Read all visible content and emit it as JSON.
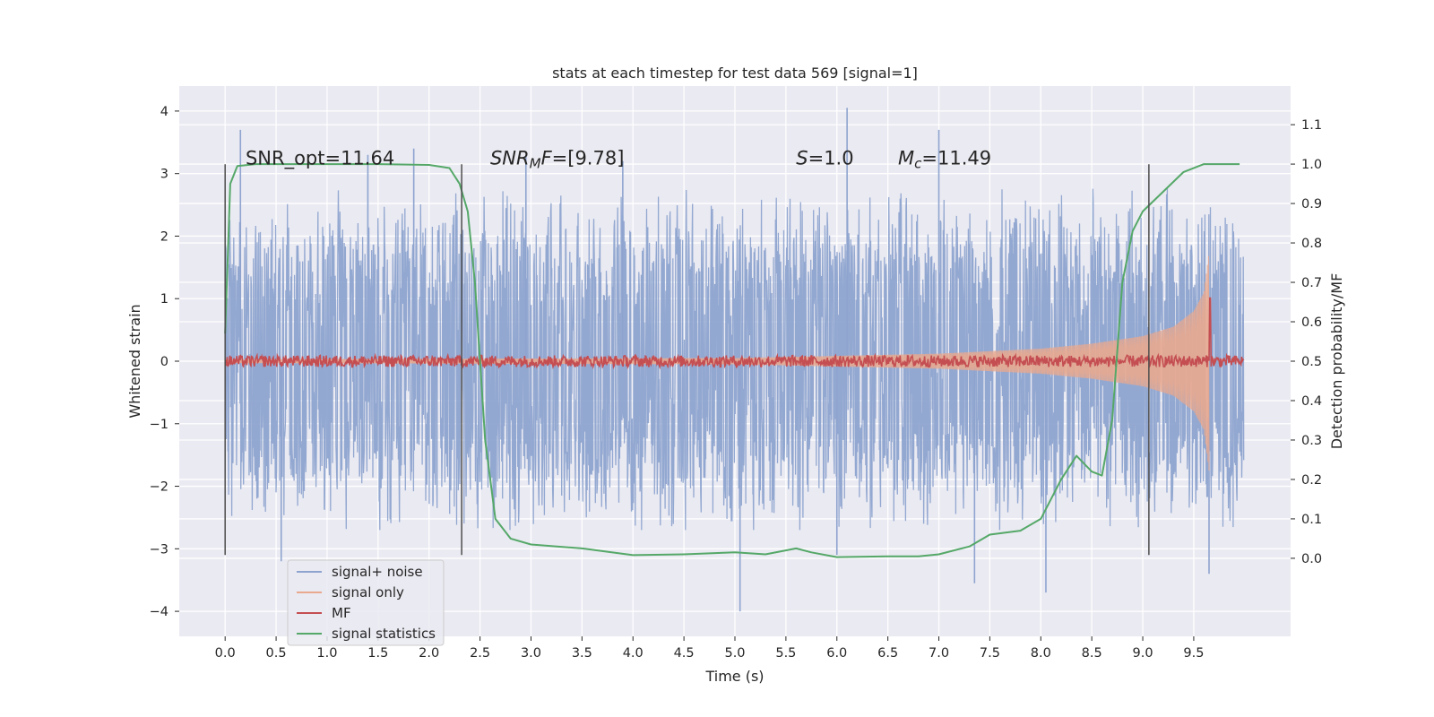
{
  "chart_data": {
    "type": "line",
    "title": "stats at each timestep for test data 569 [signal=1]",
    "xlabel": "Time (s)",
    "ylabel": "Whitened strain",
    "ylabel_right": "Detection probability/MF",
    "xlim": [
      -0.45,
      10.45
    ],
    "ylim": [
      -4.4,
      4.4
    ],
    "ylim_right": [
      -0.198,
      1.198
    ],
    "xticks": [
      0.0,
      0.5,
      1.0,
      1.5,
      2.0,
      2.5,
      3.0,
      3.5,
      4.0,
      4.5,
      5.0,
      5.5,
      6.0,
      6.5,
      7.0,
      7.5,
      8.0,
      8.5,
      9.0,
      9.5
    ],
    "xtick_labels": [
      "0.0",
      "0.5",
      "1.0",
      "1.5",
      "2.0",
      "2.5",
      "3.0",
      "3.5",
      "4.0",
      "4.5",
      "5.0",
      "5.5",
      "6.0",
      "6.5",
      "7.0",
      "7.5",
      "8.0",
      "8.5",
      "9.0",
      "9.5"
    ],
    "yticks": [
      4,
      3,
      2,
      1,
      0,
      -1,
      -2,
      -3,
      -4
    ],
    "ytick_labels": [
      "4",
      "3",
      "2",
      "1",
      "0",
      "−1",
      "−2",
      "−3",
      "−4"
    ],
    "yticks_right": [
      1.1,
      1.0,
      0.9,
      0.8,
      0.7,
      0.6,
      0.5,
      0.4,
      0.3,
      0.2,
      0.1,
      0.0
    ],
    "ytick_labels_right": [
      "1.1",
      "1.0",
      "0.9",
      "0.8",
      "0.7",
      "0.6",
      "0.5",
      "0.4",
      "0.3",
      "0.2",
      "0.1",
      "0.0"
    ],
    "grid": true,
    "legend_position": "lower-left",
    "annotations": [
      {
        "text": "SNR_opt=11.64",
        "x": 0.2,
        "y": 3.2
      },
      {
        "text": "SNR_MF=[9.78]",
        "x": 2.6,
        "y": 3.2
      },
      {
        "text": "S=1.0",
        "x": 5.6,
        "y": 3.2
      },
      {
        "text": "M_c=11.49",
        "x": 6.6,
        "y": 3.2
      }
    ],
    "vertical_lines": [
      {
        "x": 0.0,
        "ymin": -3.1,
        "ymax": 3.15
      },
      {
        "x": 2.32,
        "ymin": -3.1,
        "ymax": 3.15
      },
      {
        "x": 9.06,
        "ymin": -3.1,
        "ymax": 3.15
      }
    ],
    "series": [
      {
        "name": "signal+ noise",
        "color": "#8ea4cf",
        "axis": "left",
        "x_range": [
          0.0,
          9.99
        ],
        "envelope_upper": [
          [
            0.0,
            2.6
          ],
          [
            1.0,
            2.9
          ],
          [
            2.0,
            2.9
          ],
          [
            3.0,
            2.9
          ],
          [
            4.0,
            2.9
          ],
          [
            5.0,
            2.9
          ],
          [
            6.0,
            2.9
          ],
          [
            7.0,
            2.9
          ],
          [
            8.0,
            2.9
          ],
          [
            9.0,
            2.9
          ],
          [
            9.99,
            2.9
          ]
        ],
        "envelope_lower": [
          [
            0.0,
            -2.6
          ],
          [
            1.0,
            -2.7
          ],
          [
            2.0,
            -2.7
          ],
          [
            3.0,
            -2.7
          ],
          [
            4.0,
            -2.7
          ],
          [
            5.0,
            -2.7
          ],
          [
            6.0,
            -2.7
          ],
          [
            7.0,
            -2.7
          ],
          [
            8.0,
            -2.7
          ],
          [
            9.0,
            -2.7
          ],
          [
            9.99,
            -2.7
          ]
        ],
        "peaks": [
          [
            0.15,
            3.7
          ],
          [
            1.4,
            3.3
          ],
          [
            1.85,
            3.4
          ],
          [
            2.95,
            3.3
          ],
          [
            3.9,
            3.2
          ],
          [
            5.05,
            -4.0
          ],
          [
            6.1,
            4.05
          ],
          [
            6.0,
            -3.1
          ],
          [
            7.0,
            3.7
          ],
          [
            7.35,
            -3.55
          ],
          [
            8.05,
            -3.7
          ],
          [
            9.65,
            -3.4
          ],
          [
            0.55,
            -3.2
          ]
        ]
      },
      {
        "name": "signal only",
        "color": "#e8a98f",
        "axis": "left",
        "chirp_envelope": [
          [
            0.0,
            0.03
          ],
          [
            5.0,
            0.05
          ],
          [
            7.0,
            0.12
          ],
          [
            8.0,
            0.2
          ],
          [
            8.5,
            0.28
          ],
          [
            9.0,
            0.4
          ],
          [
            9.3,
            0.55
          ],
          [
            9.5,
            0.8
          ],
          [
            9.6,
            1.1
          ],
          [
            9.65,
            1.75
          ],
          [
            9.66,
            0.0
          ]
        ]
      },
      {
        "name": "MF",
        "color": "#c44e52",
        "axis": "right",
        "baseline": 0.5,
        "noise": 0.015,
        "spike": {
          "x": 9.66,
          "y": 0.66
        }
      },
      {
        "name": "signal statistics",
        "color": "#55a868",
        "axis": "right",
        "points": [
          [
            0.0,
            0.57
          ],
          [
            0.05,
            0.95
          ],
          [
            0.12,
            0.995
          ],
          [
            0.3,
            1.0
          ],
          [
            1.0,
            1.0
          ],
          [
            1.5,
            1.0
          ],
          [
            2.0,
            0.998
          ],
          [
            2.2,
            0.99
          ],
          [
            2.3,
            0.95
          ],
          [
            2.38,
            0.88
          ],
          [
            2.45,
            0.7
          ],
          [
            2.55,
            0.3
          ],
          [
            2.65,
            0.1
          ],
          [
            2.8,
            0.05
          ],
          [
            3.0,
            0.035
          ],
          [
            3.5,
            0.025
          ],
          [
            4.0,
            0.008
          ],
          [
            4.5,
            0.01
          ],
          [
            5.0,
            0.015
          ],
          [
            5.3,
            0.01
          ],
          [
            5.6,
            0.025
          ],
          [
            5.75,
            0.015
          ],
          [
            6.0,
            0.003
          ],
          [
            6.5,
            0.005
          ],
          [
            6.8,
            0.005
          ],
          [
            7.0,
            0.01
          ],
          [
            7.3,
            0.03
          ],
          [
            7.5,
            0.06
          ],
          [
            7.8,
            0.07
          ],
          [
            8.0,
            0.1
          ],
          [
            8.2,
            0.2
          ],
          [
            8.35,
            0.26
          ],
          [
            8.5,
            0.22
          ],
          [
            8.6,
            0.21
          ],
          [
            8.7,
            0.35
          ],
          [
            8.8,
            0.7
          ],
          [
            8.9,
            0.83
          ],
          [
            9.0,
            0.88
          ],
          [
            9.2,
            0.93
          ],
          [
            9.4,
            0.98
          ],
          [
            9.6,
            1.0
          ],
          [
            9.95,
            1.0
          ]
        ]
      }
    ]
  }
}
